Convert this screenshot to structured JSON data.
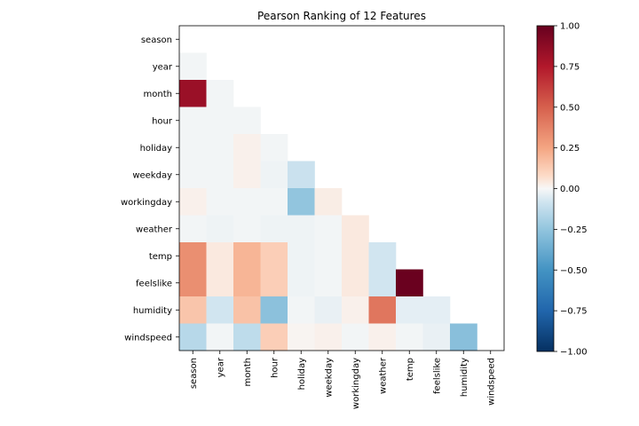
{
  "chart_data": {
    "type": "heatmap",
    "title": "Pearson Ranking of 12 Features",
    "features": [
      "season",
      "year",
      "month",
      "hour",
      "holiday",
      "weekday",
      "workingday",
      "weather",
      "temp",
      "feelslike",
      "humidity",
      "windspeed"
    ],
    "lower_triangle": [
      [
        0
      ],
      [
        -0.01,
        0
      ],
      [
        0.83,
        -0.01,
        0
      ],
      [
        -0.01,
        -0.01,
        -0.01,
        0
      ],
      [
        -0.01,
        -0.01,
        0.02,
        -0.01,
        0
      ],
      [
        -0.01,
        -0.01,
        0.02,
        -0.02,
        -0.1,
        0
      ],
      [
        0.02,
        -0.01,
        -0.01,
        -0.01,
        -0.25,
        0.03,
        0
      ],
      [
        -0.01,
        -0.02,
        -0.01,
        -0.02,
        -0.02,
        -0.01,
        0.04,
        0
      ],
      [
        0.33,
        0.04,
        0.2,
        0.12,
        -0.02,
        -0.01,
        0.04,
        -0.08,
        0
      ],
      [
        0.33,
        0.04,
        0.2,
        0.12,
        -0.02,
        -0.01,
        0.04,
        -0.08,
        0.99,
        0
      ],
      [
        0.15,
        -0.08,
        0.16,
        -0.27,
        -0.01,
        -0.03,
        0.02,
        0.42,
        -0.04,
        -0.04,
        0
      ],
      [
        -0.15,
        -0.01,
        -0.13,
        0.12,
        0.01,
        0.02,
        -0.01,
        0.02,
        -0.01,
        -0.03,
        -0.28,
        0
      ]
    ],
    "colorbar": {
      "min": -1.0,
      "max": 1.0,
      "ticks": [
        "1.00",
        "0.75",
        "0.50",
        "0.25",
        "0.00",
        "−0.25",
        "−0.50",
        "−0.75",
        "−1.00"
      ]
    },
    "colormap": "RdBu_r",
    "colors": {
      "neg_end": "#053061",
      "mid": "#f7f7f7",
      "pos_end": "#67001f"
    }
  }
}
